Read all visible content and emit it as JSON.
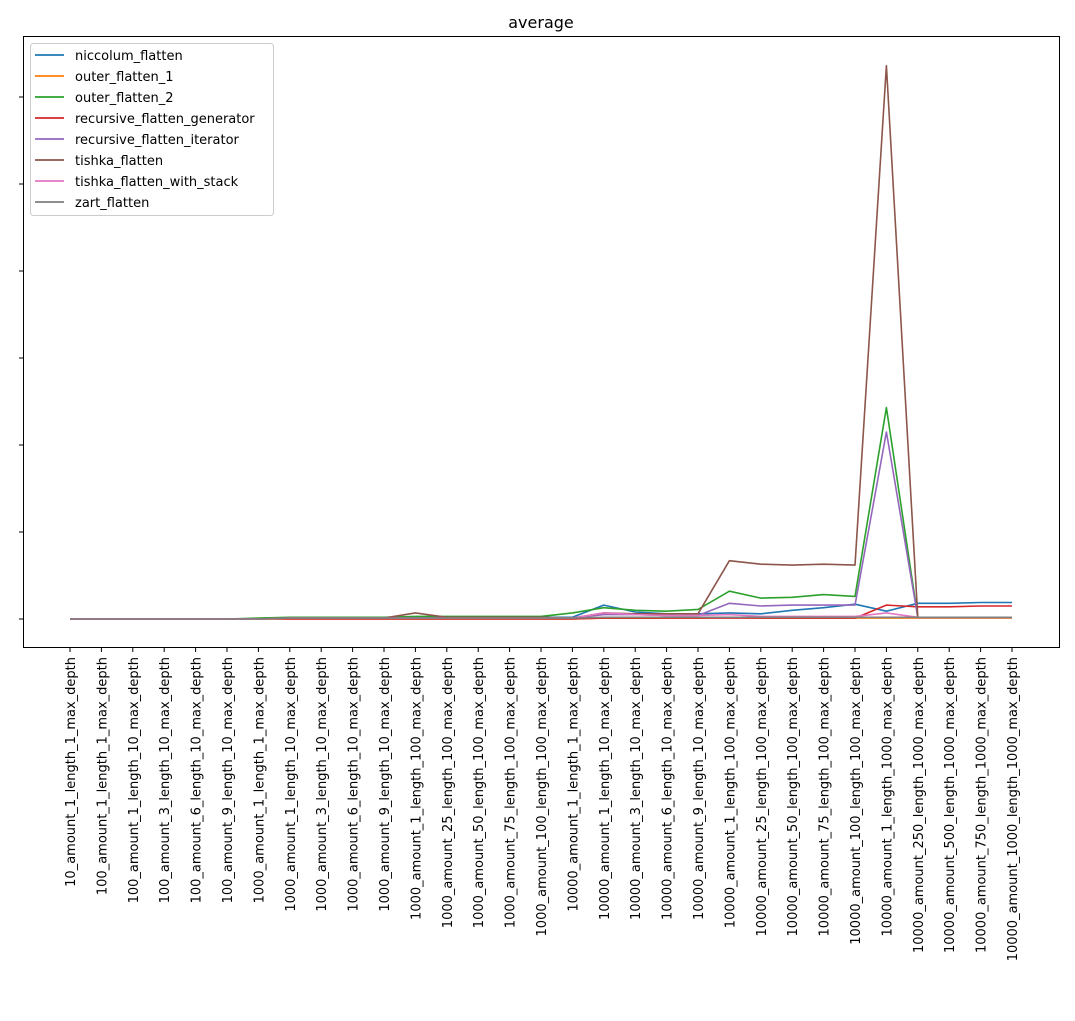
{
  "chart_data": {
    "type": "line",
    "title": "average",
    "xlabel": "",
    "ylabel": "",
    "y_tick_labels_visible": false,
    "y_ticks_count": 7,
    "ylim_units": [
      -0.32,
      6.7
    ],
    "grid": false,
    "legend_position": "upper left",
    "categories": [
      "10_amount_1_length_1_max_depth",
      "100_amount_1_length_1_max_depth",
      "100_amount_1_length_10_max_depth",
      "100_amount_3_length_10_max_depth",
      "100_amount_6_length_10_max_depth",
      "100_amount_9_length_10_max_depth",
      "1000_amount_1_length_1_max_depth",
      "1000_amount_1_length_10_max_depth",
      "1000_amount_3_length_10_max_depth",
      "1000_amount_6_length_10_max_depth",
      "1000_amount_9_length_10_max_depth",
      "1000_amount_1_length_100_max_depth",
      "1000_amount_25_length_100_max_depth",
      "1000_amount_50_length_100_max_depth",
      "1000_amount_75_length_100_max_depth",
      "1000_amount_100_length_100_max_depth",
      "10000_amount_1_length_1_max_depth",
      "10000_amount_1_length_10_max_depth",
      "10000_amount_3_length_10_max_depth",
      "10000_amount_6_length_10_max_depth",
      "10000_amount_9_length_10_max_depth",
      "10000_amount_1_length_100_max_depth",
      "10000_amount_25_length_100_max_depth",
      "10000_amount_50_length_100_max_depth",
      "10000_amount_75_length_100_max_depth",
      "10000_amount_100_length_100_max_depth",
      "10000_amount_1_length_1000_max_depth",
      "10000_amount_250_length_1000_max_depth",
      "10000_amount_500_length_1000_max_depth",
      "10000_amount_750_length_1000_max_depth",
      "10000_amount_1000_length_1000_max_depth"
    ],
    "series": [
      {
        "name": "niccolum_flatten",
        "color": "#1f77b4",
        "values": [
          0,
          0,
          0,
          0,
          0,
          0,
          0,
          0.01,
          0.01,
          0.01,
          0.01,
          0.02,
          0.02,
          0.02,
          0.02,
          0.02,
          0.02,
          0.16,
          0.08,
          0.06,
          0.06,
          0.07,
          0.06,
          0.1,
          0.13,
          0.17,
          0.09,
          0.18,
          0.18,
          0.19,
          0.19
        ]
      },
      {
        "name": "outer_flatten_1",
        "color": "#ff7f0e",
        "values": [
          0,
          0,
          0,
          0,
          0,
          0,
          0,
          0,
          0,
          0,
          0,
          0,
          0,
          0,
          0,
          0,
          0,
          0.01,
          0.01,
          0.01,
          0.01,
          0.02,
          0.01,
          0.01,
          0.01,
          0.01,
          0.01,
          0.01,
          0.01,
          0.01,
          0.01
        ]
      },
      {
        "name": "outer_flatten_2",
        "color": "#2ca02c",
        "values": [
          0,
          0,
          0,
          0,
          0,
          0,
          0.01,
          0.02,
          0.02,
          0.02,
          0.02,
          0.03,
          0.03,
          0.03,
          0.03,
          0.03,
          0.07,
          0.13,
          0.1,
          0.09,
          0.11,
          0.32,
          0.24,
          0.25,
          0.28,
          0.26,
          2.43,
          0.02,
          0.02,
          0.02,
          0.02
        ]
      },
      {
        "name": "recursive_flatten_generator",
        "color": "#d62728",
        "values": [
          0,
          0,
          0,
          0,
          0,
          0,
          0,
          0,
          0,
          0,
          0,
          0,
          0,
          0,
          0,
          0,
          0,
          0.01,
          0.01,
          0.01,
          0.01,
          0.01,
          0.01,
          0.01,
          0.01,
          0.01,
          0.16,
          0.14,
          0.14,
          0.15,
          0.15
        ]
      },
      {
        "name": "recursive_flatten_iterator",
        "color": "#9467bd",
        "values": [
          0,
          0,
          0,
          0,
          0,
          0,
          0,
          0.01,
          0.01,
          0.01,
          0.01,
          0.01,
          0.01,
          0.01,
          0.01,
          0.01,
          0.01,
          0.05,
          0.05,
          0.04,
          0.04,
          0.18,
          0.15,
          0.16,
          0.16,
          0.16,
          2.15,
          0.02,
          0.02,
          0.02,
          0.02
        ]
      },
      {
        "name": "tishka_flatten",
        "color": "#8c564b",
        "values": [
          0,
          0,
          0,
          0,
          0,
          0,
          0,
          0.01,
          0.01,
          0.01,
          0.01,
          0.07,
          0.02,
          0.02,
          0.02,
          0.02,
          0.01,
          0.07,
          0.06,
          0.06,
          0.06,
          0.67,
          0.63,
          0.62,
          0.63,
          0.62,
          6.36,
          0.02,
          0.02,
          0.02,
          0.02
        ]
      },
      {
        "name": "tishka_flatten_with_stack",
        "color": "#e377c2",
        "values": [
          0,
          0,
          0,
          0,
          0,
          0,
          0,
          0.01,
          0.01,
          0.01,
          0.01,
          0.01,
          0.01,
          0.01,
          0.01,
          0.01,
          0.01,
          0.07,
          0.05,
          0.04,
          0.04,
          0.05,
          0.03,
          0.03,
          0.03,
          0.03,
          0.07,
          0.02,
          0.02,
          0.02,
          0.02
        ]
      },
      {
        "name": "zart_flatten",
        "color": "#7f7f7f",
        "values": [
          0,
          0,
          0,
          0,
          0,
          0,
          0,
          0.01,
          0.01,
          0.01,
          0.01,
          0.01,
          0.01,
          0.01,
          0.01,
          0.01,
          0.01,
          0.02,
          0.02,
          0.02,
          0.02,
          0.02,
          0.02,
          0.02,
          0.02,
          0.02,
          0.02,
          0.02,
          0.02,
          0.02,
          0.02
        ]
      }
    ]
  }
}
